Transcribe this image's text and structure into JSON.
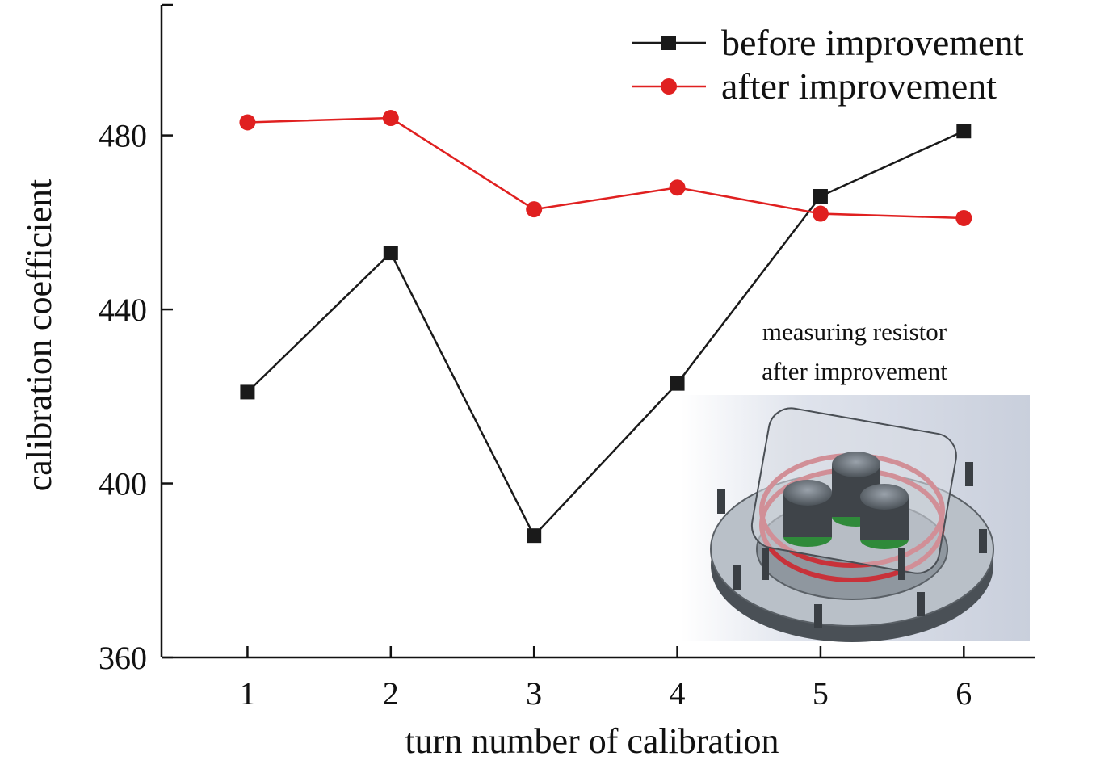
{
  "chart_data": {
    "type": "line",
    "xlabel": "turn number of calibration",
    "ylabel": "calibration coefficient",
    "x": [
      1,
      2,
      3,
      4,
      5,
      6
    ],
    "xlim": [
      0.4,
      6.5
    ],
    "ylim": [
      360,
      510
    ],
    "yticks": [
      360,
      400,
      440,
      480
    ],
    "series": [
      {
        "name": "before improvement",
        "values": [
          421,
          453,
          388,
          423,
          466,
          481
        ],
        "color": "#1a1a1a",
        "marker": "square"
      },
      {
        "name": "after improvement",
        "values": [
          483,
          484,
          463,
          468,
          462,
          461
        ],
        "color": "#e02020",
        "marker": "circle"
      }
    ],
    "legend_position": "top-right",
    "inset": {
      "caption_line1": "measuring resistor",
      "caption_line2": "after improvement",
      "image": "3d-render-of-circular-measuring-resistor"
    }
  }
}
